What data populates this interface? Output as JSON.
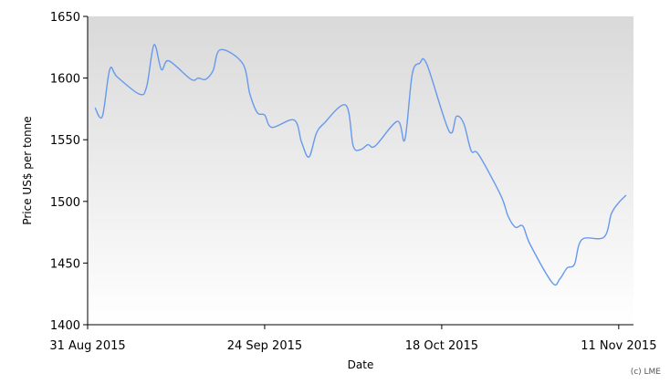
{
  "chart_data": {
    "type": "line",
    "xlabel": "Date",
    "ylabel": "Price US$ per tonne",
    "credit": "(c) LME",
    "ylim": [
      1400,
      1650
    ],
    "y_ticks": [
      1400,
      1450,
      1500,
      1550,
      1600,
      1650
    ],
    "x_ticks": [
      {
        "date": "2015-08-31",
        "label": "31 Aug 2015"
      },
      {
        "date": "2015-09-24",
        "label": "24 Sep 2015"
      },
      {
        "date": "2015-10-18",
        "label": "18 Oct 2015"
      },
      {
        "date": "2015-11-11",
        "label": "11 Nov 2015"
      }
    ],
    "xlim": [
      "2015-08-31",
      "2015-11-13"
    ],
    "grid": false,
    "legend": "none",
    "colors": {
      "line": "#6699ee",
      "bg_top": "#d9d9d9",
      "bg_bottom": "#ffffff",
      "axis": "#000000"
    },
    "series": [
      {
        "x": [
          "2015-09-01",
          "2015-09-02",
          "2015-09-03",
          "2015-09-04",
          "2015-09-07",
          "2015-09-08",
          "2015-09-09",
          "2015-09-10",
          "2015-09-11",
          "2015-09-14",
          "2015-09-15",
          "2015-09-16",
          "2015-09-17",
          "2015-09-18",
          "2015-09-21",
          "2015-09-22",
          "2015-09-23",
          "2015-09-24",
          "2015-09-25",
          "2015-09-28",
          "2015-09-29",
          "2015-09-30",
          "2015-10-01",
          "2015-10-02",
          "2015-10-05",
          "2015-10-06",
          "2015-10-07",
          "2015-10-08",
          "2015-10-09",
          "2015-10-12",
          "2015-10-13",
          "2015-10-14",
          "2015-10-15",
          "2015-10-16",
          "2015-10-19",
          "2015-10-20",
          "2015-10-21",
          "2015-10-22",
          "2015-10-23",
          "2015-10-26",
          "2015-10-27",
          "2015-10-28",
          "2015-10-29",
          "2015-10-30",
          "2015-11-02",
          "2015-11-03",
          "2015-11-04",
          "2015-11-05",
          "2015-11-06",
          "2015-11-09",
          "2015-11-10",
          "2015-11-11",
          "2015-11-12"
        ],
        "values": [
          1576,
          1569,
          1607,
          1601,
          1587,
          1593,
          1627,
          1607,
          1614,
          1599,
          1600,
          1599,
          1606,
          1623,
          1612,
          1587,
          1572,
          1570,
          1560,
          1566,
          1548,
          1536,
          1555,
          1563,
          1578,
          1545,
          1542,
          1546,
          1545,
          1565,
          1550,
          1603,
          1612,
          1611,
          1557,
          1569,
          1563,
          1541,
          1538,
          1505,
          1488,
          1479,
          1480,
          1465,
          1434,
          1437,
          1446,
          1449,
          1469,
          1471,
          1490,
          1499,
          1505
        ]
      }
    ]
  }
}
